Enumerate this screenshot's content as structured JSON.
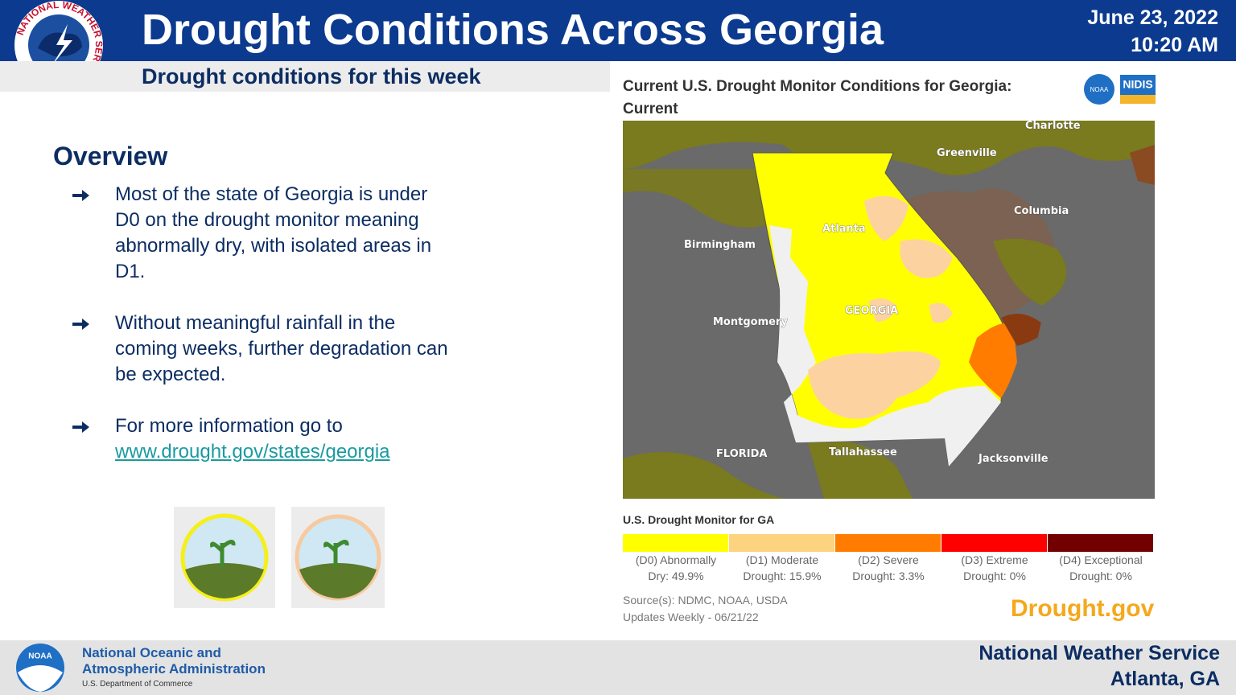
{
  "header": {
    "title": "Drought Conditions Across Georgia",
    "subtitle": "Drought conditions for this week",
    "date": "June 23, 2022",
    "time": "10:20 AM",
    "logo_text": "NATIONAL WEATHER SERVICE"
  },
  "overview": {
    "heading": "Overview",
    "bullets": [
      {
        "text": "Most of the state of Georgia is under D0 on the drought monitor meaning abnormally dry, with isolated areas in D1."
      },
      {
        "text": "Without meaningful rainfall in the coming weeks, further degradation can be expected."
      },
      {
        "text": "For more information go to",
        "link": "www.drought.gov/states/georgia"
      }
    ]
  },
  "map": {
    "title": "Current U.S. Drought Monitor Conditions for Georgia: Current",
    "noaa_badge": "NOAA",
    "nidis_badge": "NIDIS",
    "places": [
      "Charlotte",
      "Greenville",
      "Columbia",
      "Atlanta",
      "Birmingham",
      "GEORGIA",
      "Montgomery",
      "FLORIDA",
      "Tallahassee",
      "Jacksonville"
    ],
    "legend_title": "U.S. Drought Monitor for GA",
    "legend": [
      {
        "lines": [
          "(D0) Abnormally",
          "Dry: 49.9%"
        ],
        "color": "#ffff00"
      },
      {
        "lines": [
          "(D1) Moderate",
          "Drought: 15.9%"
        ],
        "color": "#fcd37f"
      },
      {
        "lines": [
          "(D2) Severe",
          "Drought: 3.3%"
        ],
        "color": "#ff7c00"
      },
      {
        "lines": [
          "(D3) Extreme",
          "Drought: 0%"
        ],
        "color": "#ff0000"
      },
      {
        "lines": [
          "(D4) Exceptional",
          "Drought: 0%"
        ],
        "color": "#730000"
      }
    ],
    "source": "Source(s): NDMC, NOAA, USDA",
    "updates": "Updates Weekly - 06/21/22",
    "brand": "Drought.gov"
  },
  "footer": {
    "org_line1": "National Oceanic and",
    "org_line2": "Atmospheric Administration",
    "dept": "U.S. Department of Commerce",
    "noaa_logo": "NOAA",
    "nws": "National Weather Service",
    "office": "Atlanta, GA"
  }
}
